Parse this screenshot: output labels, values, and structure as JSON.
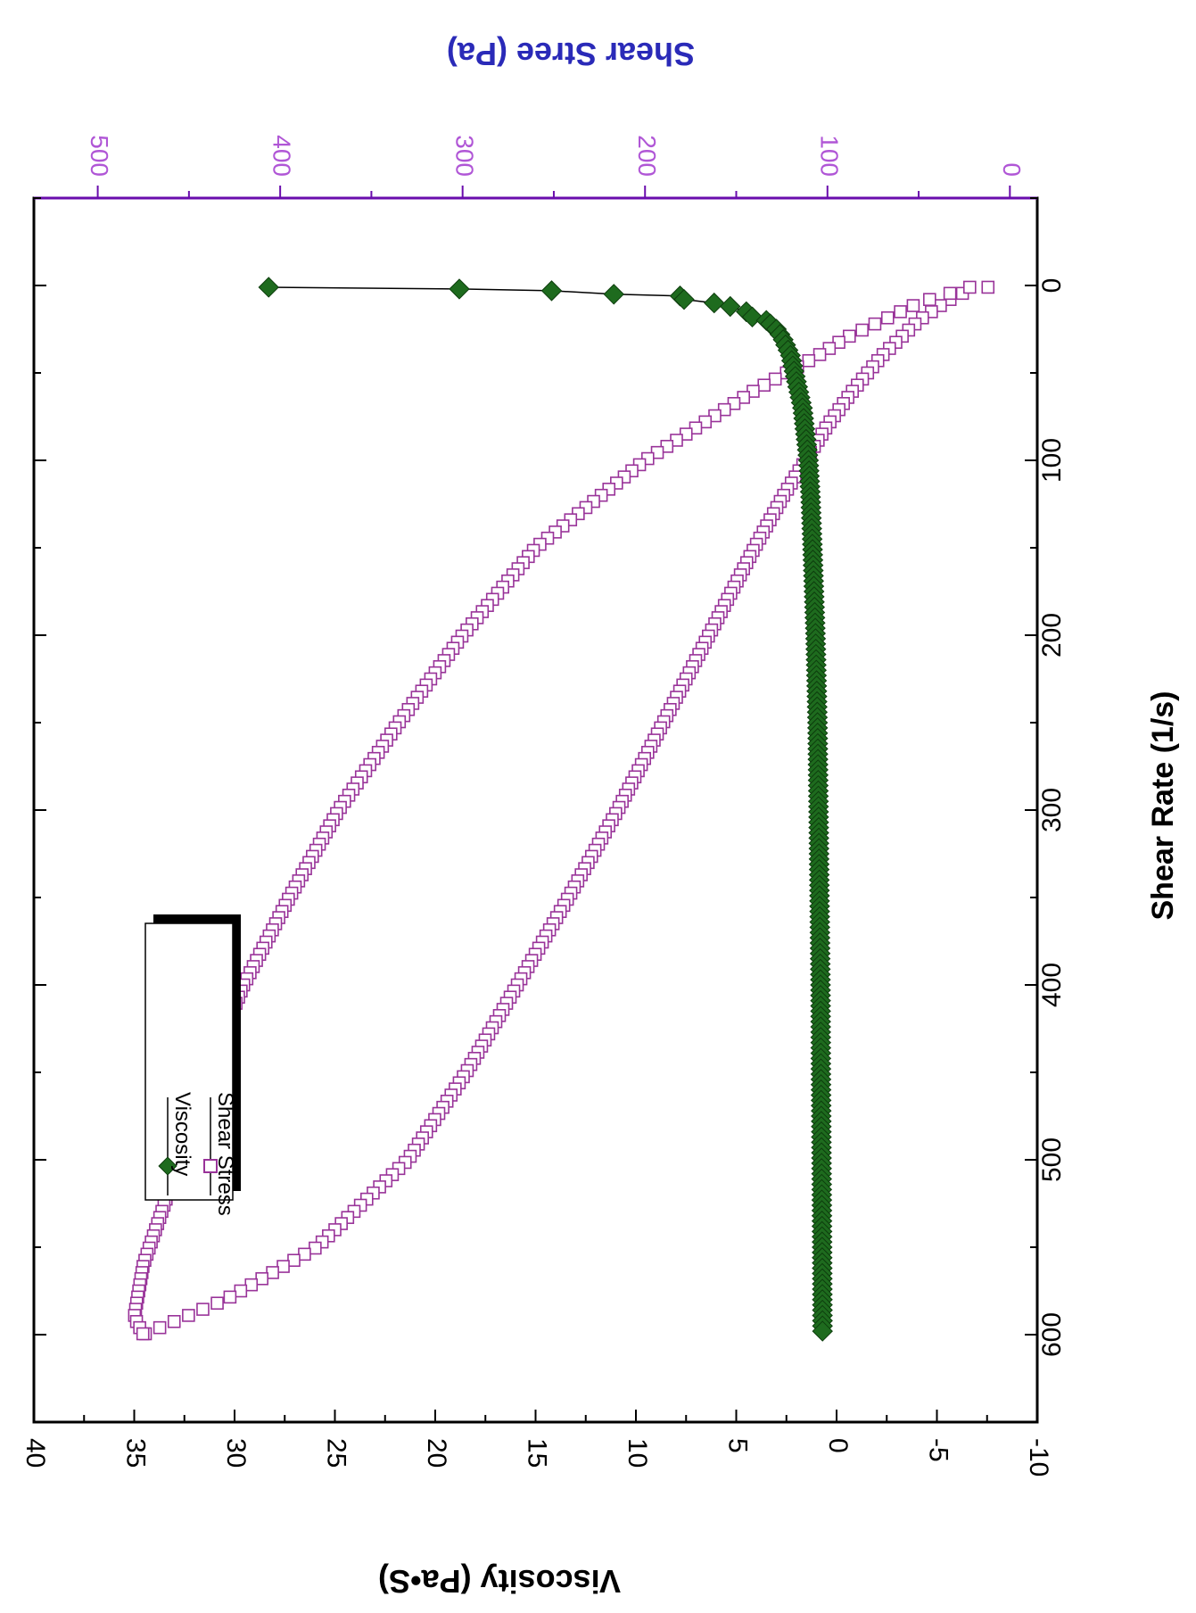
{
  "chart_data": {
    "type": "scatter",
    "orientation": "rotated-90-clockwise",
    "title": "",
    "xlabel": "Shear Rate (1/s)",
    "ylabel": "Viscosity (Pa•S)",
    "y2label": "Shear Stree (Pa)",
    "xlim": [
      -50,
      650
    ],
    "ylim": [
      -10,
      40
    ],
    "y2lim": [
      -15,
      535
    ],
    "xticks": [
      "0",
      "100",
      "200",
      "300",
      "400",
      "500",
      "600"
    ],
    "yticks": [
      "-10",
      "-5",
      "0",
      "5",
      "10",
      "15",
      "20",
      "25",
      "30",
      "35",
      "40"
    ],
    "y2ticks": [
      "0",
      "100",
      "200",
      "300",
      "400",
      "500"
    ],
    "legend_position": "top-left",
    "colors": {
      "viscosity": "#1e6b1e",
      "shear_stress": "#993399",
      "right_axis": "#6a0dad",
      "right_axis_title": "#2a2ab8"
    },
    "series": [
      {
        "name": "Viscosity",
        "axis": "left",
        "marker": "diamond",
        "x": [
          1,
          2,
          3,
          5,
          6,
          8,
          10,
          12,
          15,
          18,
          20,
          25,
          30,
          40,
          50,
          60,
          70,
          80,
          100,
          120,
          150,
          200,
          250,
          300,
          350,
          400,
          450,
          500,
          550,
          600
        ],
        "y": [
          28.3,
          18.8,
          14.2,
          11.1,
          7.8,
          7.6,
          6.1,
          5.3,
          4.5,
          4.2,
          3.5,
          3.0,
          2.7,
          2.3,
          2.1,
          1.9,
          1.7,
          1.6,
          1.4,
          1.3,
          1.2,
          1.05,
          0.95,
          0.9,
          0.85,
          0.8,
          0.78,
          0.75,
          0.72,
          0.7
        ]
      },
      {
        "name": "Shear Stress",
        "axis": "right",
        "marker": "open-square",
        "up": {
          "x": [
            1,
            5,
            10,
            20,
            30,
            40,
            50,
            60,
            70,
            80,
            100,
            120,
            150,
            200,
            250,
            300,
            350,
            400,
            450,
            500,
            550,
            580,
            600
          ],
          "y": [
            12,
            28,
            36,
            50,
            60,
            70,
            78,
            86,
            93,
            100,
            112,
            124,
            140,
            165,
            190,
            215,
            242,
            270,
            298,
            330,
            380,
            430,
            475
          ]
        },
        "down": {
          "x": [
            600,
            590,
            560,
            500,
            450,
            400,
            350,
            300,
            250,
            200,
            150,
            100,
            80,
            60,
            40,
            30,
            20,
            10,
            5,
            2
          ],
          "y": [
            475,
            480,
            475,
            455,
            440,
            420,
            395,
            368,
            335,
            300,
            260,
            200,
            170,
            140,
            105,
            90,
            70,
            50,
            35,
            22
          ]
        }
      }
    ]
  }
}
